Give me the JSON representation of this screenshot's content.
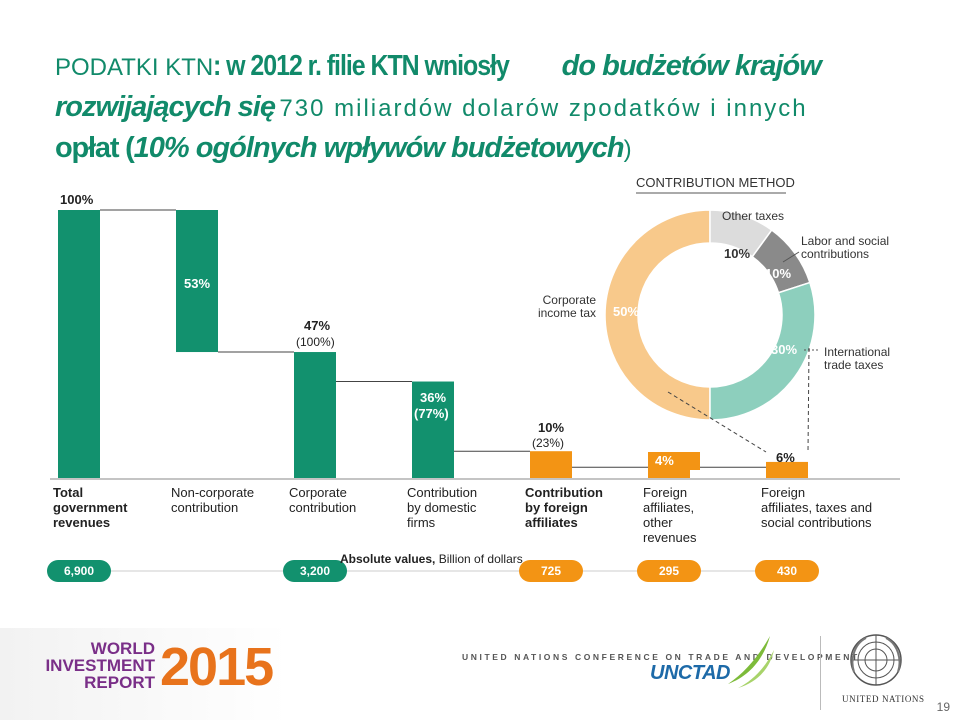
{
  "title": {
    "part1": "PODATKI KTN",
    "part2": ": w 2012 r. filie KTN wniosły",
    "part3": "do budżetów krajów",
    "part4": "rozwijających się",
    "part5": "730 miliardów dolarów z",
    "part6": "podatków i innych",
    "part7": "opłat (",
    "part8": "10% ogólnych wpływów budżetowych",
    "part9": ")"
  },
  "chart_data": {
    "type": "bar",
    "subtype": "waterfall",
    "categories": [
      "Total government revenues",
      "Non-corporate contribution",
      "Corporate contribution",
      "Contribution by domestic firms",
      "Contribution by foreign affiliates",
      "Foreign affiliates, other revenues",
      "Foreign affiliates, taxes and social contributions"
    ],
    "values_pct": [
      100,
      53,
      47,
      36,
      10,
      4,
      6
    ],
    "pct_labels": [
      "100%",
      "53%",
      "47%",
      "36%",
      "10%",
      "4%",
      "6%"
    ],
    "sub_labels": [
      "",
      "",
      "(100%)",
      "(77%)",
      "(23%)",
      "",
      ""
    ],
    "absolute_values": [
      {
        "category_index": 0,
        "value": "6,900"
      },
      {
        "category_index": 2,
        "value": "3,200"
      },
      {
        "category_index": 4,
        "value": "725"
      },
      {
        "category_index": 5,
        "value": "295"
      },
      {
        "category_index": 6,
        "value": "430"
      }
    ],
    "absolute_label_bold": "Absolute values,",
    "absolute_label_rest": " Billion of dollars",
    "colors": {
      "green": "#12916e",
      "orange": "#f39414",
      "connector": "#333333"
    },
    "donut": {
      "title": "CONTRIBUTION METHOD",
      "slices": [
        {
          "label": "Corporate income tax",
          "value": 50,
          "pct_label": "50%",
          "color": "#f8c98b"
        },
        {
          "label": "Other taxes",
          "value": 10,
          "pct_label": "10%",
          "color": "#dcdcdc"
        },
        {
          "label": "Labor and social contributions",
          "value": 10,
          "pct_label": "10%",
          "color": "#8a8a8a"
        },
        {
          "label": "International trade taxes",
          "value": 30,
          "pct_label": "30%",
          "color": "#8dcfbd"
        }
      ]
    }
  },
  "category_lines": [
    [
      "Total",
      "government",
      "revenues"
    ],
    [
      "Non-corporate",
      "contribution"
    ],
    [
      "Corporate",
      "contribution"
    ],
    [
      "Contribution",
      "by domestic",
      "firms"
    ],
    [
      "Contribution",
      "by foreign",
      "affiliates"
    ],
    [
      "Foreign",
      "affiliates,",
      "other",
      "revenues"
    ],
    [
      "Foreign",
      "affiliates, taxes and",
      "social contributions"
    ]
  ],
  "donut_label_lines": {
    "corporate": [
      "Corporate",
      "income tax"
    ],
    "other": [
      "Other taxes"
    ],
    "labor": [
      "Labor and social",
      "contributions"
    ],
    "trade": [
      "International",
      "trade taxes"
    ]
  },
  "footer": {
    "wir_lines": [
      "WORLD",
      "INVESTMENT",
      "REPORT"
    ],
    "wir_year": "2015",
    "unctad_conf": "UNITED NATIONS CONFERENCE ON TRADE AND DEVELOPMENT",
    "unctad": "UNCTAD",
    "un": "UNITED NATIONS",
    "page": "19"
  }
}
